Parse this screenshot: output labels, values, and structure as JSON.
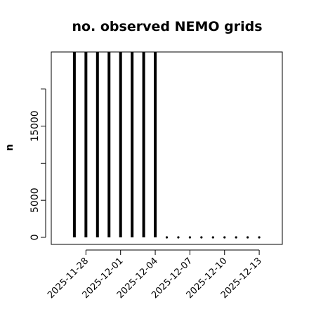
{
  "chart_data": {
    "type": "spike",
    "title": "no. observed NEMO grids",
    "y_label": "n",
    "x": [
      "2025-11-27",
      "2025-11-28",
      "2025-11-29",
      "2025-11-30",
      "2025-12-01",
      "2025-12-02",
      "2025-12-03",
      "2025-12-04",
      "2025-12-05",
      "2025-12-06",
      "2025-12-07",
      "2025-12-08",
      "2025-12-09",
      "2025-12-10",
      "2025-12-11",
      "2025-12-12",
      "2025-12-13"
    ],
    "values": [
      25000,
      25000,
      25000,
      25000,
      25000,
      25000,
      25000,
      25000,
      0,
      0,
      0,
      0,
      0,
      0,
      0,
      0,
      0
    ],
    "color": "#000000",
    "xlim": [
      "2025-11-25",
      "2025-12-15"
    ],
    "xticks": [
      "2025-11-28",
      "2025-12-01",
      "2025-12-04",
      "2025-12-07",
      "2025-12-10",
      "2025-12-13"
    ],
    "ylim": [
      -950,
      25000
    ],
    "yticks": [
      0,
      5000,
      {
        "value": 10000,
        "label": null
      },
      15000,
      {
        "value": 20000,
        "label": null
      }
    ]
  }
}
